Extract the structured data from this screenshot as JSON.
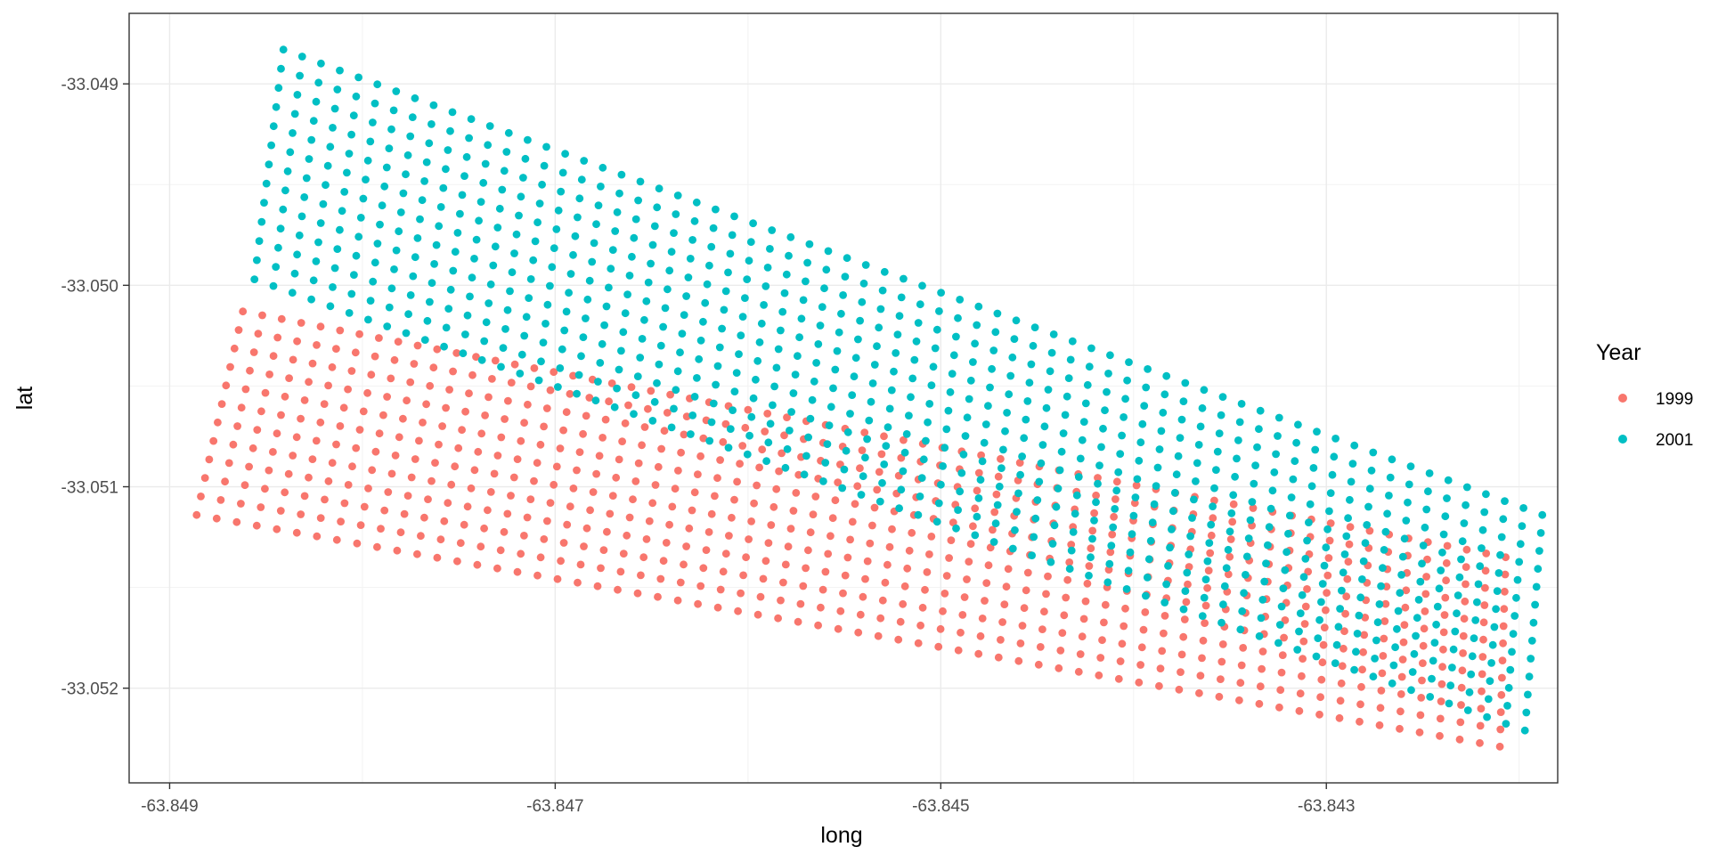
{
  "chart_data": {
    "type": "scatter",
    "xlabel": "long",
    "ylabel": "lat",
    "xlim": [
      -63.84921,
      -63.8418
    ],
    "ylim": [
      -33.05247,
      -33.04865
    ],
    "x_ticks": [
      -63.849,
      -63.847,
      -63.845,
      -63.843
    ],
    "x_tick_labels": [
      "-63.849",
      "-63.847",
      "-63.845",
      "-63.843"
    ],
    "y_ticks": [
      -33.049,
      -33.05,
      -33.051,
      -33.052
    ],
    "y_tick_labels": [
      "-33.049",
      "-33.050",
      "-33.051",
      "-33.052"
    ],
    "grid": true,
    "legend": {
      "title": "Year",
      "position": "right"
    },
    "series": [
      {
        "name": "1999",
        "color": "#F8766D",
        "corners": {
          "upper_left": [
            -63.84862,
            -33.05013
          ],
          "lower_left": [
            -63.84886,
            -33.05114
          ],
          "upper_right": [
            -63.84207,
            -33.05135
          ],
          "lower_right": [
            -63.8421,
            -33.05229
          ]
        },
        "cols": 66,
        "rows": 12
      },
      {
        "name": "2001",
        "color": "#00BFC4",
        "corners": {
          "upper_left": [
            -63.84841,
            -33.04883
          ],
          "lower_left": [
            -63.84856,
            -33.04997
          ],
          "upper_right": [
            -63.84188,
            -33.05114
          ],
          "lower_right": [
            -63.84197,
            -33.05221
          ]
        },
        "cols": 68,
        "rows": 13
      }
    ]
  }
}
